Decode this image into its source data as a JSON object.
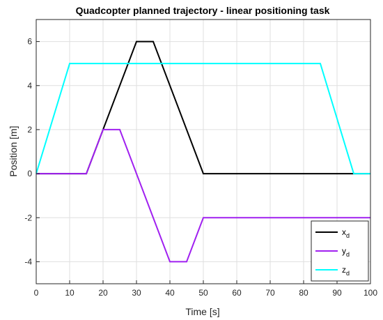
{
  "chart_data": {
    "type": "line",
    "title": "Quadcopter planned trajectory - linear positioning task",
    "xlabel": "Time [s]",
    "ylabel": "Position [m]",
    "xlim": [
      0,
      100
    ],
    "ylim": [
      -5,
      7
    ],
    "xticks": [
      0,
      10,
      20,
      30,
      40,
      50,
      60,
      70,
      80,
      90,
      100
    ],
    "yticks": [
      -4,
      -2,
      0,
      2,
      4,
      6
    ],
    "grid": true,
    "legend_position": "bottom-right",
    "series": [
      {
        "name": "x",
        "name_subscript": "d",
        "color": "#000000",
        "x": [
          0,
          15,
          20,
          30,
          35,
          50,
          100
        ],
        "y": [
          0,
          0,
          2,
          6,
          6,
          0,
          0
        ]
      },
      {
        "name": "y",
        "name_subscript": "d",
        "color": "#a020f0",
        "x": [
          0,
          15,
          20,
          25,
          40,
          45,
          50,
          100
        ],
        "y": [
          0,
          0,
          2,
          2,
          -4,
          -4,
          -2,
          -2
        ]
      },
      {
        "name": "z",
        "name_subscript": "d",
        "color": "#00ffff",
        "x": [
          0,
          10,
          85,
          95,
          100
        ],
        "y": [
          0,
          5,
          5,
          0,
          0
        ]
      }
    ]
  }
}
